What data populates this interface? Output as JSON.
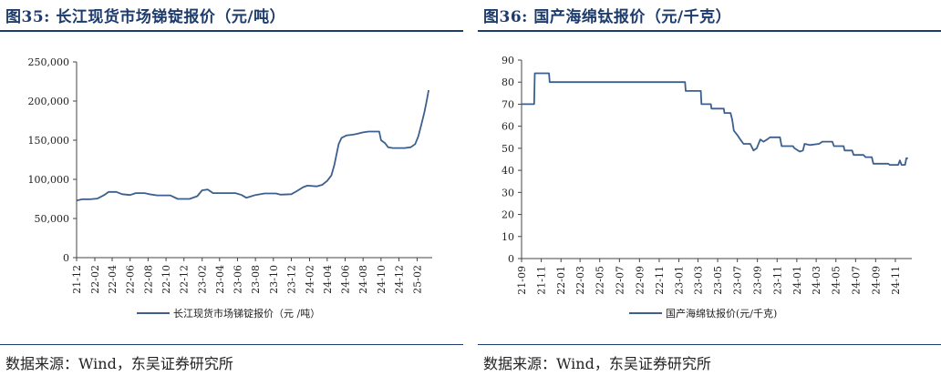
{
  "panels": [
    {
      "fig_label": "图35:",
      "title": "长江现货市场锑锭报价（元/吨）",
      "source": "数据来源：Wind，东吴证券研究所"
    },
    {
      "fig_label": "图36:",
      "title": "国产海绵钛报价（元/千克）",
      "source": "数据来源：Wind，东吴证券研究所"
    }
  ],
  "chart_data": [
    {
      "type": "line",
      "title": "长江现货市场锑锭报价（元/吨）",
      "legend": "top-center-below-axis",
      "ylim": [
        0,
        250000
      ],
      "y_ticks": [
        "250,000",
        "200,000",
        "150,000",
        "100,000",
        "50,000",
        "0"
      ],
      "y_tick_values": [
        250000,
        200000,
        150000,
        100000,
        50000,
        0
      ],
      "x_ticks": [
        "21-12",
        "22-02",
        "22-04",
        "22-06",
        "22-08",
        "22-10",
        "22-12",
        "23-02",
        "23-04",
        "23-06",
        "23-08",
        "23-10",
        "23-12",
        "24-02",
        "24-04",
        "24-06",
        "24-08",
        "24-10",
        "24-12",
        "25-02"
      ],
      "series": [
        {
          "name": "长江现货市场锑锭报价（元 /吨）",
          "color": "#3c5f8e",
          "points": [
            [
              "2021-12-01",
              73000
            ],
            [
              "2021-12-20",
              74500
            ],
            [
              "2022-01-15",
              74500
            ],
            [
              "2022-02-10",
              75500
            ],
            [
              "2022-03-05",
              80000
            ],
            [
              "2022-03-20",
              84000
            ],
            [
              "2022-04-15",
              84000
            ],
            [
              "2022-05-05",
              81000
            ],
            [
              "2022-06-01",
              80000
            ],
            [
              "2022-06-20",
              82500
            ],
            [
              "2022-07-20",
              82500
            ],
            [
              "2022-08-05",
              81000
            ],
            [
              "2022-09-01",
              79500
            ],
            [
              "2022-10-15",
              79500
            ],
            [
              "2022-11-10",
              75000
            ],
            [
              "2022-12-20",
              75000
            ],
            [
              "2023-01-15",
              78500
            ],
            [
              "2023-02-01",
              86000
            ],
            [
              "2023-02-20",
              87000
            ],
            [
              "2023-03-10",
              82500
            ],
            [
              "2023-04-20",
              82500
            ],
            [
              "2023-05-25",
              82500
            ],
            [
              "2023-06-15",
              80000
            ],
            [
              "2023-07-01",
              76500
            ],
            [
              "2023-07-15",
              78000
            ],
            [
              "2023-08-01",
              80000
            ],
            [
              "2023-09-01",
              82000
            ],
            [
              "2023-10-10",
              82000
            ],
            [
              "2023-10-25",
              80500
            ],
            [
              "2023-12-01",
              81000
            ],
            [
              "2023-12-20",
              85000
            ],
            [
              "2024-01-10",
              90000
            ],
            [
              "2024-01-25",
              92000
            ],
            [
              "2024-02-25",
              91000
            ],
            [
              "2024-03-15",
              93000
            ],
            [
              "2024-04-01",
              98000
            ],
            [
              "2024-04-15",
              105000
            ],
            [
              "2024-04-25",
              118000
            ],
            [
              "2024-05-10",
              145000
            ],
            [
              "2024-05-20",
              153000
            ],
            [
              "2024-06-05",
              156000
            ],
            [
              "2024-06-25",
              157000
            ],
            [
              "2024-07-10",
              158000
            ],
            [
              "2024-08-01",
              160000
            ],
            [
              "2024-08-20",
              161000
            ],
            [
              "2024-09-25",
              161000
            ],
            [
              "2024-10-01",
              150000
            ],
            [
              "2024-10-15",
              146000
            ],
            [
              "2024-10-25",
              141000
            ],
            [
              "2024-11-10",
              140000
            ],
            [
              "2024-12-20",
              140000
            ],
            [
              "2025-01-10",
              141000
            ],
            [
              "2025-01-25",
              145000
            ],
            [
              "2025-02-05",
              155000
            ],
            [
              "2025-02-15",
              170000
            ],
            [
              "2025-02-25",
              185000
            ],
            [
              "2025-03-05",
              200000
            ],
            [
              "2025-03-12",
              214000
            ]
          ]
        }
      ]
    },
    {
      "type": "line",
      "title": "国产海绵钛报价（元/千克）",
      "legend": "top-center-below-axis",
      "ylim": [
        0,
        90
      ],
      "y_ticks": [
        "90",
        "80",
        "70",
        "60",
        "50",
        "40",
        "30",
        "20",
        "10",
        "0"
      ],
      "y_tick_values": [
        90,
        80,
        70,
        60,
        50,
        40,
        30,
        20,
        10,
        0
      ],
      "x_ticks": [
        "21-09",
        "21-11",
        "22-01",
        "22-03",
        "22-05",
        "22-07",
        "22-09",
        "22-11",
        "23-01",
        "23-03",
        "23-05",
        "23-07",
        "23-09",
        "23-11",
        "24-01",
        "24-03",
        "24-05",
        "24-07",
        "24-09",
        "24-11"
      ],
      "series": [
        {
          "name": "国产海绵钛报价(元/千克)",
          "color": "#3c5f8e",
          "points": [
            [
              "2021-09-01",
              70
            ],
            [
              "2021-10-10",
              70
            ],
            [
              "2021-10-12",
              84
            ],
            [
              "2021-11-25",
              84
            ],
            [
              "2021-11-27",
              80
            ],
            [
              "2023-01-20",
              80
            ],
            [
              "2023-01-22",
              76
            ],
            [
              "2023-03-10",
              76
            ],
            [
              "2023-03-12",
              70
            ],
            [
              "2023-04-10",
              70
            ],
            [
              "2023-04-12",
              68
            ],
            [
              "2023-05-20",
              68
            ],
            [
              "2023-05-22",
              66
            ],
            [
              "2023-06-10",
              66
            ],
            [
              "2023-06-15",
              63
            ],
            [
              "2023-06-20",
              58
            ],
            [
              "2023-07-01",
              56
            ],
            [
              "2023-07-10",
              54
            ],
            [
              "2023-07-20",
              52
            ],
            [
              "2023-08-10",
              52
            ],
            [
              "2023-08-20",
              49
            ],
            [
              "2023-08-30",
              50
            ],
            [
              "2023-09-10",
              54
            ],
            [
              "2023-09-20",
              53
            ],
            [
              "2023-10-01",
              54
            ],
            [
              "2023-10-10",
              55
            ],
            [
              "2023-11-10",
              55
            ],
            [
              "2023-11-15",
              51
            ],
            [
              "2023-12-20",
              51
            ],
            [
              "2023-12-25",
              50
            ],
            [
              "2024-01-10",
              48.5
            ],
            [
              "2024-01-20",
              49
            ],
            [
              "2024-01-25",
              52
            ],
            [
              "2024-02-10",
              51.5
            ],
            [
              "2024-03-10",
              52
            ],
            [
              "2024-03-20",
              53
            ],
            [
              "2024-04-20",
              53
            ],
            [
              "2024-04-25",
              51
            ],
            [
              "2024-05-25",
              51
            ],
            [
              "2024-05-28",
              49
            ],
            [
              "2024-06-20",
              49
            ],
            [
              "2024-06-25",
              47
            ],
            [
              "2024-07-25",
              47
            ],
            [
              "2024-08-01",
              46
            ],
            [
              "2024-08-20",
              46
            ],
            [
              "2024-08-25",
              43
            ],
            [
              "2024-10-10",
              43
            ],
            [
              "2024-10-15",
              42.5
            ],
            [
              "2024-11-10",
              42.5
            ],
            [
              "2024-11-15",
              44.5
            ],
            [
              "2024-11-20",
              42.5
            ],
            [
              "2024-12-01",
              42.5
            ],
            [
              "2024-12-05",
              45.5
            ],
            [
              "2024-12-10",
              45.5
            ]
          ]
        }
      ]
    }
  ]
}
